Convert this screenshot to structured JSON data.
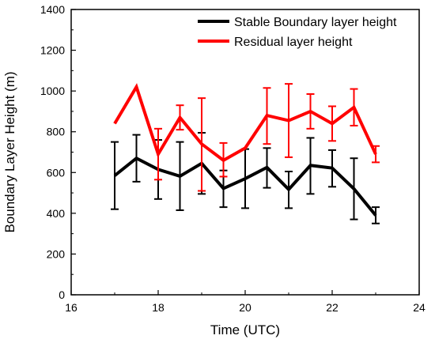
{
  "chart_data": {
    "type": "line",
    "xlabel": "Time (UTC)",
    "ylabel": "Boundary Layer Height (m)",
    "xlim": [
      16,
      24
    ],
    "ylim": [
      0,
      1400
    ],
    "x_ticks": [
      "16",
      "18",
      "20",
      "22",
      "24"
    ],
    "y_ticks": [
      "0",
      "200",
      "400",
      "600",
      "800",
      "1000",
      "1200",
      "1400"
    ],
    "legend_position": "top-right",
    "series": [
      {
        "name": "Stable Boundary layer height",
        "color": "#000000",
        "x": [
          17,
          17.5,
          18,
          18.5,
          19,
          19.5,
          20,
          20.5,
          21,
          21.5,
          22,
          22.5,
          23
        ],
        "values": [
          585,
          670,
          615,
          582,
          645,
          522,
          570,
          625,
          517,
          635,
          622,
          520,
          390
        ],
        "error_low": [
          420,
          555,
          470,
          415,
          495,
          430,
          425,
          525,
          425,
          495,
          530,
          370,
          350
        ],
        "error_high": [
          750,
          785,
          760,
          750,
          795,
          610,
          715,
          720,
          605,
          770,
          710,
          670,
          430
        ]
      },
      {
        "name": "Residual layer height",
        "color": "#ff0000",
        "x": [
          17,
          17.5,
          18,
          18.5,
          19,
          19.5,
          20,
          20.5,
          21,
          21.5,
          22,
          22.5,
          23
        ],
        "values": [
          840,
          1020,
          690,
          870,
          740,
          660,
          720,
          880,
          855,
          900,
          840,
          920,
          690
        ],
        "error_low": [
          null,
          null,
          565,
          810,
          510,
          580,
          null,
          740,
          675,
          815,
          755,
          830,
          650
        ],
        "error_high": [
          null,
          null,
          815,
          930,
          965,
          745,
          null,
          1015,
          1035,
          985,
          925,
          1010,
          730
        ]
      }
    ]
  }
}
